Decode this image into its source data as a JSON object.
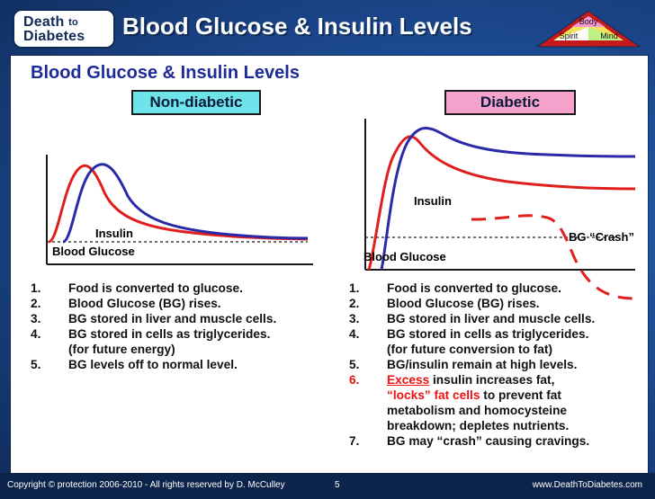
{
  "header": {
    "logo_line1": "Death",
    "logo_to": "to",
    "logo_line2": "Diabetes",
    "title": "Blood Glucose & Insulin Levels",
    "pyramid": {
      "top": "Body",
      "left": "Spirit",
      "right": "Mind"
    }
  },
  "panel": {
    "title": "Blood Glucose & Insulin Levels",
    "left_badge": "Non-diabetic",
    "right_badge": "Diabetic",
    "labels": {
      "left_insulin": "Insulin",
      "left_bg": "Blood Glucose",
      "right_insulin": "Insulin",
      "right_bg": "Blood Glucose",
      "bg_crash": "BG “Crash”"
    },
    "colors": {
      "insulin": "#2a2aa8",
      "glucose": "#e01e1e",
      "black": "#1a1a1a"
    }
  },
  "lists": {
    "left": [
      {
        "n": "1.",
        "t": "Food is converted to glucose."
      },
      {
        "n": "2.",
        "t": "Blood Glucose (BG) rises."
      },
      {
        "n": "3.",
        "t": "BG stored in liver and muscle cells."
      },
      {
        "n": "4.",
        "t": "BG stored in cells as triglycerides."
      },
      {
        "n": "",
        "t": "(for future energy)"
      },
      {
        "n": "5.",
        "t": "BG levels off to normal level."
      }
    ],
    "right": [
      {
        "n": "1.",
        "t": "Food is converted to glucose."
      },
      {
        "n": "2.",
        "t": "Blood Glucose (BG) rises."
      },
      {
        "n": "3.",
        "t": "BG stored in liver and muscle cells."
      },
      {
        "n": "4.",
        "t": "BG stored in cells as triglycerides."
      },
      {
        "n": "",
        "t": "(for future conversion to fat)"
      },
      {
        "n": "5.",
        "t": "BG/insulin remain at high levels."
      },
      {
        "n": "6.",
        "excess": "Excess",
        "t_after_excess": " insulin increases fat,"
      },
      {
        "n": "",
        "locks": "“locks” fat cells",
        "t_after_locks": " to prevent fat"
      },
      {
        "n": "",
        "t": "metabolism and homocysteine"
      },
      {
        "n": "",
        "t": "breakdown; depletes nutrients."
      },
      {
        "n": "7.",
        "t": "BG may “crash” causing cravings."
      }
    ]
  },
  "footer": {
    "left": "Copyright © protection 2006-2010 - All rights reserved by D. McCulley",
    "page": "5",
    "right": "www.DeathToDiabetes.com"
  }
}
